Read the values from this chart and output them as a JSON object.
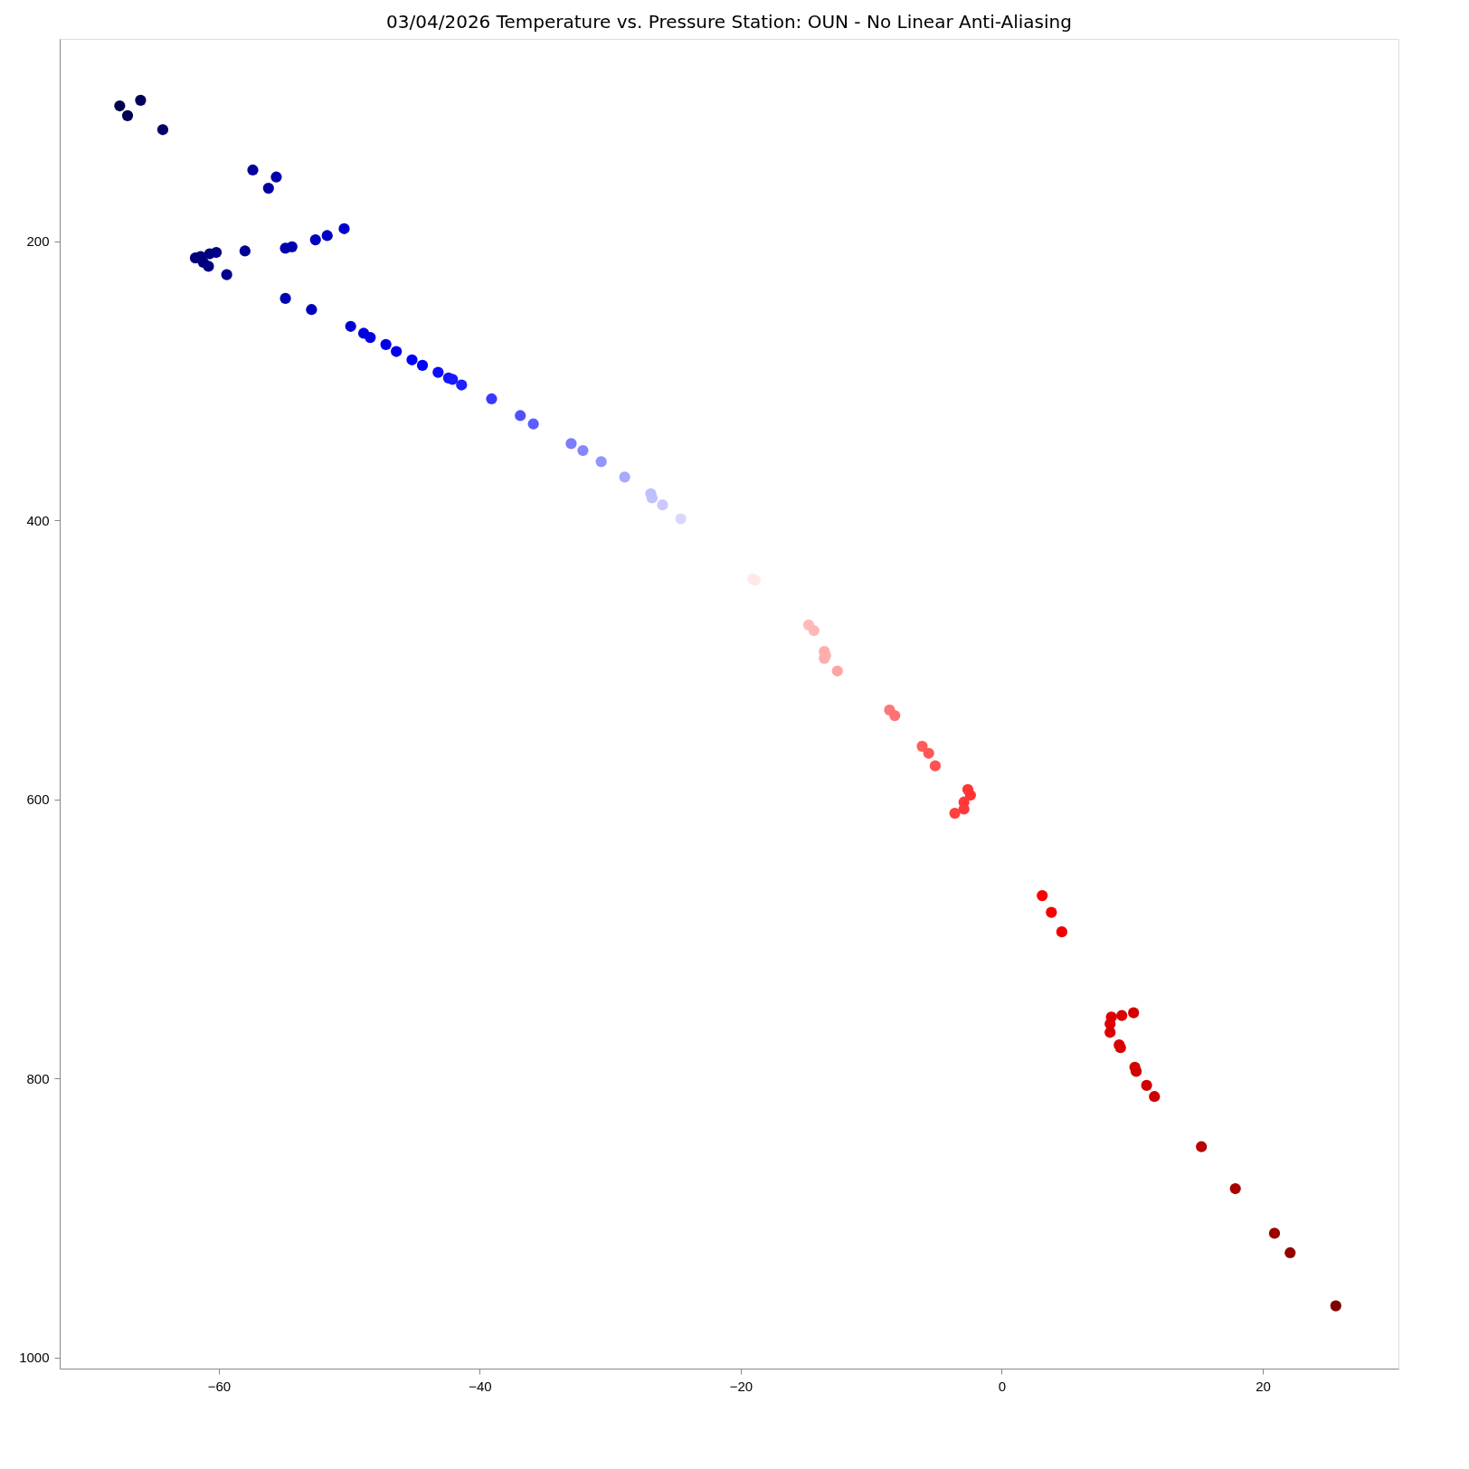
{
  "chart_data": {
    "type": "scatter",
    "title": "03/04/2026 Temperature vs. Pressure Station: OUN - No Linear Anti-Aliasing",
    "x": [
      -67.6,
      -67.0,
      -66.0,
      -64.3,
      -57.4,
      -55.6,
      -56.2,
      -50.4,
      -51.7,
      -52.6,
      -54.4,
      -54.9,
      -58.0,
      -60.2,
      -60.7,
      -61.8,
      -61.4,
      -61.2,
      -60.8,
      -59.4,
      -54.9,
      -52.9,
      -49.9,
      -48.9,
      -48.4,
      -47.2,
      -46.4,
      -45.2,
      -44.4,
      -43.2,
      -42.4,
      -42.1,
      -41.4,
      -39.1,
      -36.9,
      -35.9,
      -33.0,
      -32.1,
      -30.7,
      -28.9,
      -26.9,
      -26.8,
      -26.0,
      -24.6,
      -19.1,
      -18.9,
      -14.8,
      -14.4,
      -13.6,
      -13.5,
      -13.6,
      -12.6,
      -8.6,
      -8.2,
      -6.1,
      -5.6,
      -5.1,
      -2.6,
      -2.4,
      -2.9,
      -2.9,
      -3.6,
      3.1,
      3.8,
      4.6,
      8.4,
      9.2,
      10.1,
      8.3,
      8.3,
      9.0,
      9.1,
      10.2,
      10.3,
      11.1,
      11.7,
      15.3,
      17.9,
      20.9,
      22.1,
      25.6
    ],
    "values": [
      103,
      110,
      99,
      120,
      149,
      154,
      162,
      191,
      196,
      199,
      204,
      205,
      207,
      208,
      209,
      212,
      211,
      215,
      218,
      224,
      241,
      249,
      261,
      266,
      269,
      274,
      279,
      285,
      289,
      294,
      298,
      299,
      303,
      313,
      325,
      331,
      345,
      350,
      358,
      369,
      381,
      384,
      389,
      399,
      442,
      443,
      475,
      479,
      494,
      497,
      499,
      508,
      536,
      540,
      562,
      567,
      576,
      593,
      597,
      602,
      607,
      610,
      669,
      681,
      695,
      756,
      755,
      753,
      761,
      767,
      776,
      778,
      792,
      795,
      805,
      813,
      849,
      879,
      911,
      925,
      963
    ],
    "colors": [
      "#00004c",
      "#000051",
      "#000059",
      "#000066",
      "#00009b",
      "#0000a8",
      "#0000a3",
      "#0000d1",
      "#0000c7",
      "#0000bf",
      "#0000b2",
      "#0000ad",
      "#000096",
      "#000085",
      "#000082",
      "#000078",
      "#00007c",
      "#00007d",
      "#000080",
      "#00008c",
      "#0000ad",
      "#0000bc",
      "#0000d4",
      "#0000db",
      "#0000e0",
      "#0000e8",
      "#0000ef",
      "#0000f8",
      "#0000fe",
      "#0c0cff",
      "#1515ff",
      "#1818ff",
      "#2020ff",
      "#3939ff",
      "#5151ff",
      "#5c5cff",
      "#7c7cff",
      "#8686ff",
      "#9595ff",
      "#a9a9ff",
      "#bfbfff",
      "#c0c0ff",
      "#c9c9ff",
      "#d8d8ff",
      "#ffebeb",
      "#ffe8e8",
      "#ffbbbb",
      "#ffb7b7",
      "#ffaeae",
      "#ffadad",
      "#ffaeae",
      "#ffa3a3",
      "#ff7777",
      "#ff7373",
      "#ff5c5c",
      "#ff5757",
      "#ff5151",
      "#ff3636",
      "#ff3333",
      "#ff3939",
      "#ff3939",
      "#ff4040",
      "#fa0000",
      "#f70000",
      "#f20000",
      "#de0000",
      "#d90000",
      "#d40000",
      "#df0000",
      "#df0000",
      "#da0000",
      "#d90000",
      "#d40000",
      "#d30000",
      "#cf0000",
      "#cc0000",
      "#b80000",
      "#aa0000",
      "#990000",
      "#930000",
      "#800000"
    ],
    "xlim": [
      -72.2,
      30.4
    ],
    "ylim": [
      1008,
      55
    ],
    "xticks": [
      -60,
      -40,
      -20,
      0,
      20
    ],
    "yticks": [
      200,
      400,
      600,
      800,
      1000
    ],
    "marker": "circle",
    "grid": false
  }
}
